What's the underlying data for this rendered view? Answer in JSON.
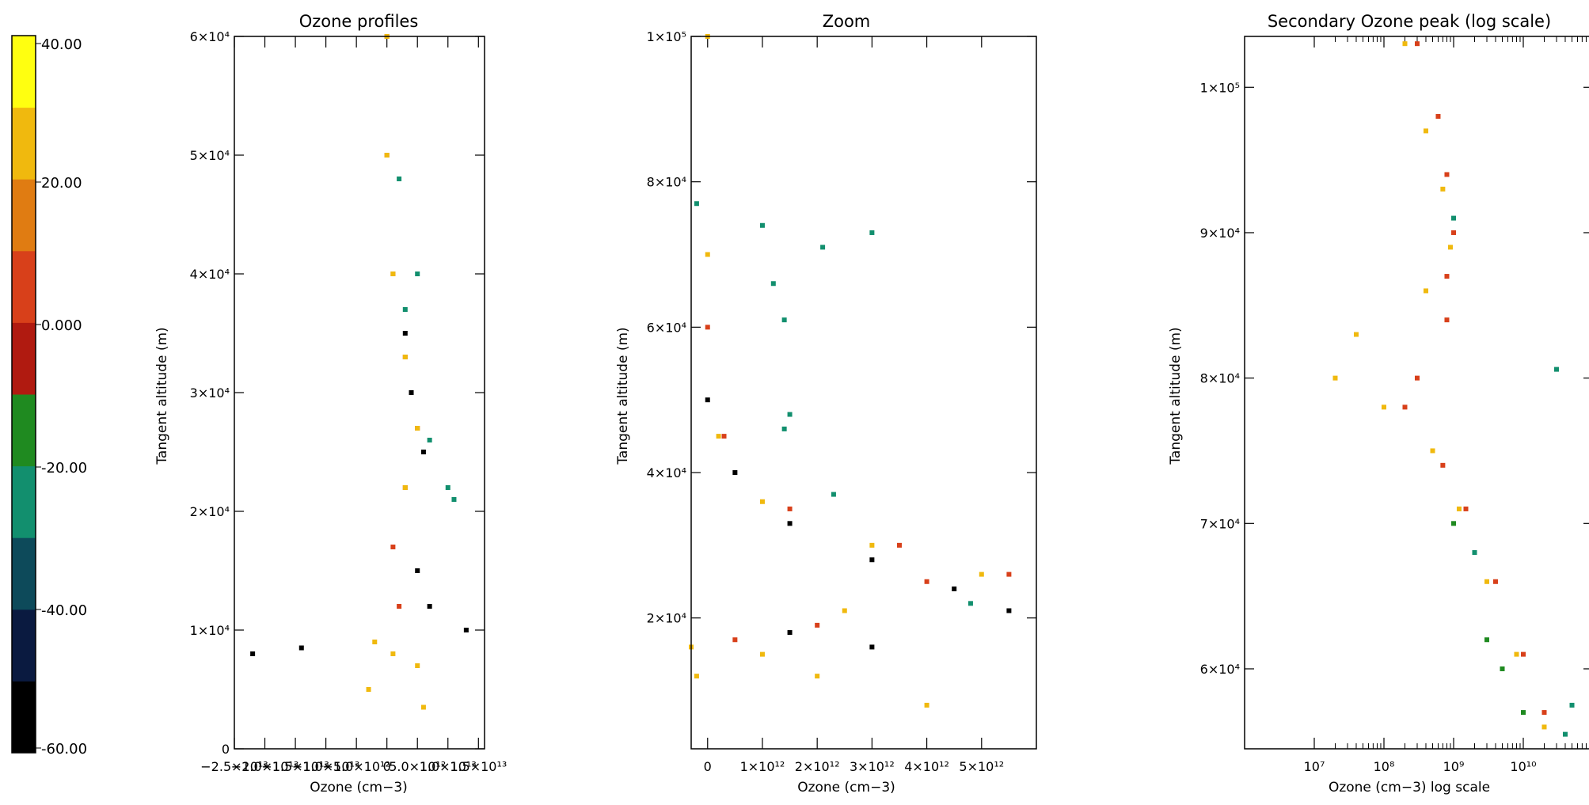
{
  "colorbar": {
    "tick_labels": [
      "40.00",
      "20.00",
      "0.000",
      "-20.00",
      "-40.00",
      "-60.00"
    ],
    "tick_values": [
      40,
      20,
      0,
      -20,
      -40,
      -60
    ],
    "range": [
      -60,
      40
    ],
    "colors": [
      "#000000",
      "#0a1a40",
      "#0d4a5a",
      "#128f6e",
      "#1f8a20",
      "#b01a10",
      "#d8401a",
      "#e07c12",
      "#f0b90e",
      "#ffff10"
    ]
  },
  "chart_data": [
    {
      "type": "scatter",
      "title": "Ozone profiles",
      "xlabel": "Ozone (cm−3)",
      "ylabel": "Tangent altitude (m)",
      "xlim": [
        -25000000000000.0,
        16000000000000.0
      ],
      "ylim": [
        0,
        60000
      ],
      "xticks": [
        -25000000000000.0,
        -20000000000000.0,
        -15000000000000.0,
        -10000000000000.0,
        -5000000000000.0,
        0,
        5000000000000.0,
        10000000000000.0,
        15000000000000.0
      ],
      "xtick_labels": [
        "−2.5×10¹³",
        "−2.0×10¹³",
        "−1.5×10¹³",
        "−1.0×10¹³",
        "−5.0×10¹²",
        "0",
        "5.0×10¹²",
        "1.0×10¹³",
        "1.5×10¹³"
      ],
      "yticks": [
        0,
        10000,
        20000,
        30000,
        40000,
        50000,
        60000
      ],
      "ytick_labels": [
        "0",
        "1×10⁴",
        "2×10⁴",
        "3×10⁴",
        "4×10⁴",
        "5×10⁴",
        "6×10⁴"
      ],
      "series": [
        {
          "color_value": -60,
          "points": [
            [
              -22000000000000.0,
              8000
            ],
            [
              -14000000000000.0,
              8500
            ],
            [
              13000000000000.0,
              10000
            ],
            [
              5000000000000.0,
              15000
            ],
            [
              6000000000000.0,
              25000
            ],
            [
              4000000000000.0,
              30000
            ],
            [
              3000000000000.0,
              35000
            ],
            [
              7000000000000.0,
              12000
            ]
          ]
        },
        {
          "color_value": -30,
          "points": [
            [
              2000000000000.0,
              48000
            ],
            [
              3000000000000.0,
              37000
            ],
            [
              7000000000000.0,
              26000
            ],
            [
              10000000000000.0,
              22000
            ],
            [
              11000000000000.0,
              21000
            ],
            [
              5000000000000.0,
              40000
            ]
          ]
        },
        {
          "color_value": 5,
          "points": [
            [
              0,
              60000
            ],
            [
              0,
              50000
            ],
            [
              1000000000000.0,
              40000
            ],
            [
              3000000000000.0,
              33000
            ],
            [
              5000000000000.0,
              27000
            ],
            [
              3000000000000.0,
              22000
            ],
            [
              1000000000000.0,
              17000
            ],
            [
              2000000000000.0,
              12000
            ]
          ]
        },
        {
          "color_value": 28,
          "points": [
            [
              0,
              60000
            ],
            [
              0,
              50000
            ],
            [
              1000000000000.0,
              40000
            ],
            [
              3000000000000.0,
              33000
            ],
            [
              5000000000000.0,
              27000
            ],
            [
              3000000000000.0,
              22000
            ],
            [
              -2000000000000.0,
              9000
            ],
            [
              1000000000000.0,
              8000
            ],
            [
              5000000000000.0,
              7000
            ],
            [
              -3000000000000.0,
              5000
            ],
            [
              6000000000000.0,
              3500
            ]
          ]
        }
      ]
    },
    {
      "type": "scatter",
      "title": "Zoom",
      "xlabel": "Ozone (cm−3)",
      "ylabel": "Tangent altitude (m)",
      "xlim": [
        -300000000000.0,
        6000000000000.0
      ],
      "ylim": [
        2000,
        100000
      ],
      "xticks": [
        0,
        1000000000000.0,
        2000000000000.0,
        3000000000000.0,
        4000000000000.0,
        5000000000000.0
      ],
      "xtick_labels": [
        "0",
        "1×10¹²",
        "2×10¹²",
        "3×10¹²",
        "4×10¹²",
        "5×10¹²"
      ],
      "yticks": [
        20000,
        40000,
        60000,
        80000,
        100000
      ],
      "ytick_labels": [
        "2×10⁴",
        "4×10⁴",
        "6×10⁴",
        "8×10⁴",
        "1×10⁵"
      ],
      "series": [
        {
          "color_value": -60,
          "points": [
            [
              0,
              50000
            ],
            [
              500000000000.0,
              40000
            ],
            [
              1500000000000.0,
              33000
            ],
            [
              3000000000000.0,
              28000
            ],
            [
              4500000000000.0,
              24000
            ],
            [
              5500000000000.0,
              21000
            ],
            [
              3000000000000.0,
              16000
            ],
            [
              1500000000000.0,
              18000
            ]
          ]
        },
        {
          "color_value": -30,
          "points": [
            [
              1000000000000.0,
              74000
            ],
            [
              2100000000000.0,
              71000
            ],
            [
              3000000000000.0,
              73000
            ],
            [
              1200000000000.0,
              66000
            ],
            [
              1400000000000.0,
              61000
            ],
            [
              1500000000000.0,
              48000
            ],
            [
              1400000000000.0,
              46000
            ],
            [
              2300000000000.0,
              37000
            ],
            [
              4800000000000.0,
              22000
            ],
            [
              -200000000000.0,
              77000
            ]
          ]
        },
        {
          "color_value": 5,
          "points": [
            [
              0,
              60000
            ],
            [
              300000000000.0,
              45000
            ],
            [
              1500000000000.0,
              35000
            ],
            [
              3500000000000.0,
              30000
            ],
            [
              5500000000000.0,
              26000
            ],
            [
              4000000000000.0,
              25000
            ],
            [
              2000000000000.0,
              19000
            ],
            [
              500000000000.0,
              17000
            ]
          ]
        },
        {
          "color_value": 28,
          "points": [
            [
              0,
              100000
            ],
            [
              0,
              70000
            ],
            [
              200000000000.0,
              45000
            ],
            [
              1000000000000.0,
              36000
            ],
            [
              3000000000000.0,
              30000
            ],
            [
              5000000000000.0,
              26000
            ],
            [
              2500000000000.0,
              21000
            ],
            [
              1000000000000.0,
              15000
            ],
            [
              2000000000000.0,
              12000
            ],
            [
              4000000000000.0,
              8000
            ],
            [
              -200000000000.0,
              12000
            ],
            [
              -300000000000.0,
              16000
            ]
          ]
        }
      ]
    },
    {
      "type": "scatter",
      "title": "Secondary Ozone peak (log scale)",
      "xlabel": "Ozone (cm−3) log scale",
      "ylabel": "Tangent altitude (m)",
      "xscale": "log",
      "xlim": [
        1000000.0,
        100000000000.0
      ],
      "ylim": [
        54500,
        103500
      ],
      "xticks": [
        10000000.0,
        100000000.0,
        1000000000.0,
        10000000000.0
      ],
      "xtick_labels": [
        "10⁷",
        "10⁸",
        "10⁹",
        "10¹⁰"
      ],
      "yticks": [
        60000,
        70000,
        80000,
        90000,
        100000
      ],
      "ytick_labels": [
        "6×10⁴",
        "7×10⁴",
        "8×10⁴",
        "9×10⁴",
        "1×10⁵"
      ],
      "series": [
        {
          "color_value": -30,
          "points": [
            [
              50000000000.0,
              57500
            ],
            [
              40000000000.0,
              55500
            ],
            [
              30000000000.0,
              80600
            ],
            [
              1000000000.0,
              91000
            ],
            [
              2000000000.0,
              68000
            ]
          ]
        },
        {
          "color_value": -15,
          "points": [
            [
              3000000000.0,
              62000
            ],
            [
              5000000000.0,
              60000
            ],
            [
              1000000000.0,
              70000
            ],
            [
              10000000000.0,
              57000
            ]
          ]
        },
        {
          "color_value": 5,
          "points": [
            [
              300000000.0,
              103000
            ],
            [
              600000000.0,
              98000
            ],
            [
              800000000.0,
              94000
            ],
            [
              1000000000.0,
              90000
            ],
            [
              800000000.0,
              87000
            ],
            [
              800000000.0,
              84000
            ],
            [
              300000000.0,
              80000
            ],
            [
              200000000.0,
              78000
            ],
            [
              700000000.0,
              74000
            ],
            [
              1500000000.0,
              71000
            ],
            [
              4000000000.0,
              66000
            ],
            [
              10000000000.0,
              61000
            ],
            [
              20000000000.0,
              57000
            ]
          ]
        },
        {
          "color_value": 28,
          "points": [
            [
              200000000.0,
              103000
            ],
            [
              400000000.0,
              97000
            ],
            [
              700000000.0,
              93000
            ],
            [
              900000000.0,
              89000
            ],
            [
              400000000.0,
              86000
            ],
            [
              40000000.0,
              83000
            ],
            [
              20000000.0,
              80000
            ],
            [
              100000000.0,
              78000
            ],
            [
              500000000.0,
              75000
            ],
            [
              1200000000.0,
              71000
            ],
            [
              3000000000.0,
              66000
            ],
            [
              8000000000.0,
              61000
            ],
            [
              20000000000.0,
              56000
            ]
          ]
        }
      ]
    }
  ]
}
